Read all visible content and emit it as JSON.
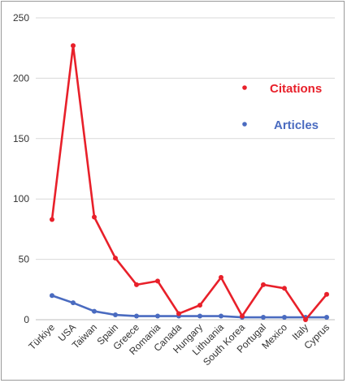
{
  "chart_data": {
    "type": "line",
    "categories": [
      "Türkiye",
      "USA",
      "Taiwan",
      "Spain",
      "Greece",
      "Romania",
      "Canada",
      "Hungary",
      "Lithuania",
      "South Korea",
      "Portugal",
      "Mexico",
      "Italy",
      "Cyprus"
    ],
    "series": [
      {
        "name": "Citations",
        "color": "#e8202a",
        "values": [
          83,
          227,
          85,
          51,
          29,
          32,
          5,
          12,
          35,
          3,
          29,
          26,
          0,
          21
        ]
      },
      {
        "name": "Articles",
        "color": "#4a6bc0",
        "values": [
          20,
          14,
          7,
          4,
          3,
          3,
          3,
          3,
          3,
          2,
          2,
          2,
          2,
          2
        ]
      }
    ],
    "ylim": [
      0,
      250
    ],
    "yticks": [
      0,
      50,
      100,
      150,
      200,
      250
    ],
    "grid": true,
    "legend_placement": "right"
  }
}
